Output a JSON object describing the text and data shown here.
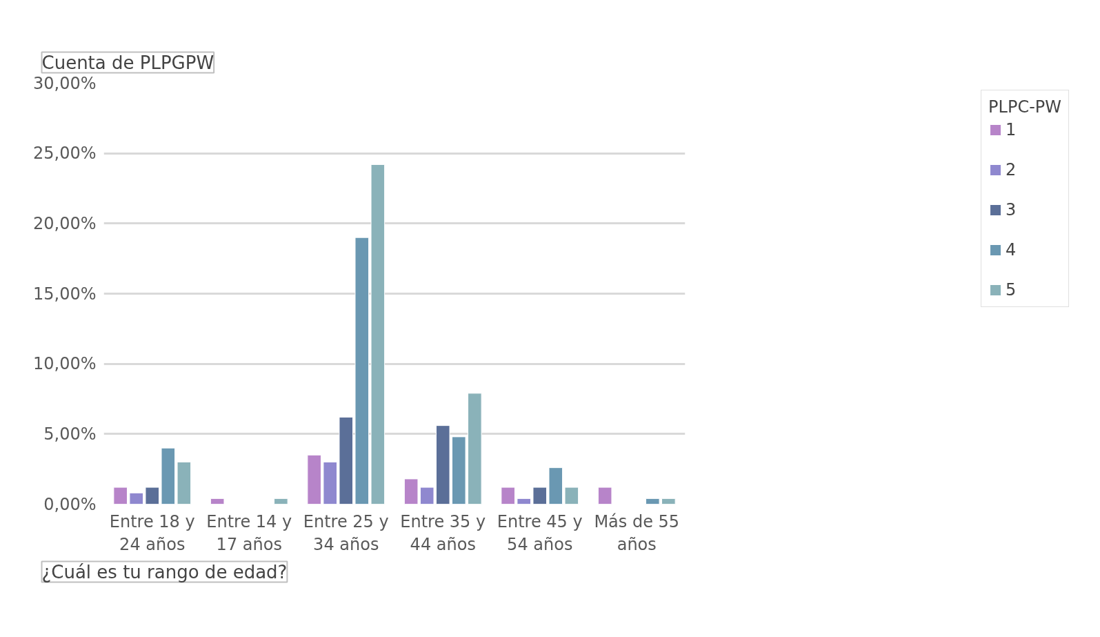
{
  "chart_data": {
    "type": "bar",
    "title": "Cuenta de PLPGPW",
    "legend_title": "PLPC-PW",
    "categories": [
      "Entre 18 y 24 años",
      "Entre 14 y 17 años",
      "Entre 25 y 34 años",
      "Entre 35 y 44 años",
      "Entre 45 y 54 años",
      "Más de 55 años"
    ],
    "series": [
      {
        "name": "1",
        "color": "#b784c9",
        "values": [
          1.2,
          0.4,
          3.5,
          1.8,
          1.2,
          1.2
        ]
      },
      {
        "name": "2",
        "color": "#8f88cf",
        "values": [
          0.8,
          null,
          3.0,
          1.2,
          0.4,
          null
        ]
      },
      {
        "name": "3",
        "color": "#5b6f98",
        "values": [
          1.2,
          null,
          6.2,
          5.6,
          1.2,
          null
        ]
      },
      {
        "name": "4",
        "color": "#6a98b2",
        "values": [
          4.0,
          null,
          19.0,
          4.8,
          2.6,
          0.4
        ]
      },
      {
        "name": "5",
        "color": "#8ab2b9",
        "values": [
          3.0,
          0.4,
          24.2,
          7.9,
          1.2,
          0.4
        ]
      }
    ],
    "ylim": [
      0,
      30
    ],
    "yticks": [
      {
        "value": 0,
        "label": "0,00%"
      },
      {
        "value": 5,
        "label": "5,00%"
      },
      {
        "value": 10,
        "label": "10,00%"
      },
      {
        "value": 15,
        "label": "15,00%"
      },
      {
        "value": 20,
        "label": "20,00%"
      },
      {
        "value": 25,
        "label": "25,00%"
      },
      {
        "value": 30,
        "label": "30,00%"
      }
    ],
    "grid": "y",
    "legend": "right",
    "annotations": [
      "¿Cuál es tu rango de edad?"
    ]
  }
}
